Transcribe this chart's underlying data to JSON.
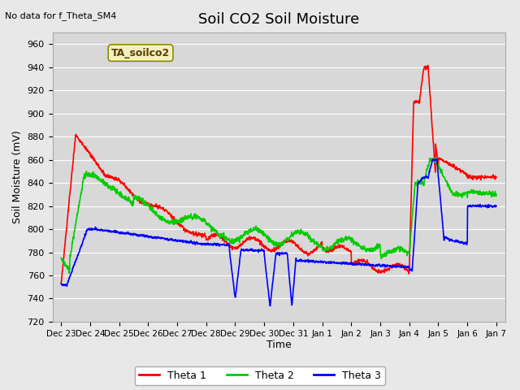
{
  "title": "Soil CO2 Soil Moisture",
  "xlabel": "Time",
  "ylabel": "Soil Moisture (mV)",
  "ylim": [
    720,
    970
  ],
  "yticks": [
    720,
    740,
    760,
    780,
    800,
    820,
    840,
    860,
    880,
    900,
    920,
    940,
    960
  ],
  "no_data_text": "No data for f_Theta_SM4",
  "box_label": "TA_soilco2",
  "background_color": "#e8e8e8",
  "plot_bg_color": "#d8d8d8",
  "grid_color": "#ffffff",
  "legend_labels": [
    "Theta 1",
    "Theta 2",
    "Theta 3"
  ],
  "legend_colors": [
    "#ff0000",
    "#00cc00",
    "#0000ff"
  ],
  "x_labels": [
    "Dec 23",
    "Dec 24",
    "Dec 25",
    "Dec 26",
    "Dec 27",
    "Dec 28",
    "Dec 29",
    "Dec 30",
    "Dec 31",
    "Jan 1",
    "Jan 2",
    "Jan 3",
    "Jan 4",
    "Jan 5",
    "Jan 6",
    "Jan 7"
  ]
}
